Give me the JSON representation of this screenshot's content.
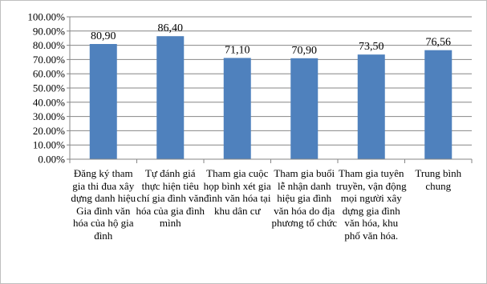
{
  "chart_data": {
    "type": "bar",
    "categories": [
      "Đăng ký tham gia thi đua xây dựng danh hiệu Gia đình văn hóa của hộ gia đình",
      "Tự đánh giá thực hiện tiêu chí gia đình văn hóa của gia đình mình",
      "Tham gia cuộc họp bình xét gia đình văn hóa tại khu dân cư",
      "Tham gia buổi lễ nhận danh hiệu gia đình văn hóa do địa phương tổ chức",
      "Tham gia tuyên truyền, vận động mọi người xây dựng gia đình văn hóa, khu phố văn hóa.",
      "Trung bình chung"
    ],
    "values": [
      80.9,
      86.4,
      71.1,
      70.9,
      73.5,
      76.56
    ],
    "value_labels": [
      "80,90",
      "86,40",
      "71,10",
      "70,90",
      "73,50",
      "76,56"
    ],
    "ylim": [
      0,
      100
    ],
    "yticks": [
      "0.00%",
      "10.00%",
      "20.00%",
      "30.00%",
      "40.00%",
      "50.00%",
      "60.00%",
      "70.00%",
      "80.00%",
      "90.00%",
      "100.00%"
    ],
    "grid": true,
    "legend": "none",
    "bar_color": "#4f81bd",
    "title": "",
    "xlabel": "",
    "ylabel": ""
  }
}
